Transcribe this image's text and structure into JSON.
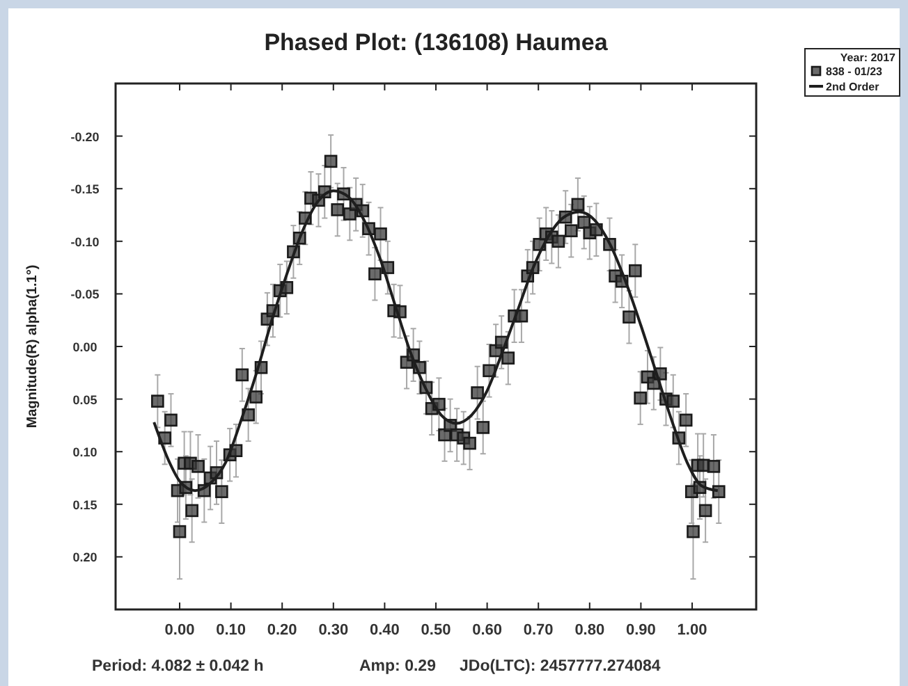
{
  "chart_data": {
    "type": "scatter",
    "title": "Phased Plot: (136108) Haumea",
    "ylabel": "Magnitude(R) alpha(1.1°)",
    "legend_title": "Year: 2017",
    "legend": "top right",
    "grid": false,
    "annotations": [
      "Period: 4.082 ± 0.042 h",
      "Amp: 0.29",
      "JDo(LTC): 2457777.274084"
    ],
    "xlim": [
      -0.125,
      1.125
    ],
    "xticks": [
      {
        "value": 0,
        "label": "0.00"
      },
      {
        "value": 0.1,
        "label": "0.10"
      },
      {
        "value": 0.2,
        "label": "0.20"
      },
      {
        "value": 0.3,
        "label": "0.30"
      },
      {
        "value": 0.4,
        "label": "0.40"
      },
      {
        "value": 0.5,
        "label": "0.50"
      },
      {
        "value": 0.6,
        "label": "0.60"
      },
      {
        "value": 0.7,
        "label": "0.70"
      },
      {
        "value": 0.8,
        "label": "0.80"
      },
      {
        "value": 0.9,
        "label": "0.90"
      },
      {
        "value": 1,
        "label": "1.00"
      }
    ],
    "ylim": [
      0.25,
      -0.25
    ],
    "yticks": [
      {
        "value": -0.2,
        "label": "-0.20"
      },
      {
        "value": -0.15,
        "label": "-0.15"
      },
      {
        "value": -0.1,
        "label": "-0.10"
      },
      {
        "value": -0.05,
        "label": "-0.05"
      },
      {
        "value": 0,
        "label": "0.00"
      },
      {
        "value": 0.05,
        "label": "0.05"
      },
      {
        "value": 0.1,
        "label": "0.10"
      },
      {
        "value": 0.15,
        "label": "0.15"
      },
      {
        "value": 0.2,
        "label": "0.20"
      }
    ],
    "series": [
      {
        "name": "838 - 01/23",
        "marker": "square",
        "color": "#3a3a3a",
        "x": [
          -0.043,
          -0.029,
          -0.017,
          -0.004,
          0,
          0.009,
          0.012,
          0.021,
          0.024,
          0.036,
          0.048,
          0.06,
          0.072,
          0.082,
          0.098,
          0.11,
          0.122,
          0.134,
          0.149,
          0.159,
          0.171,
          0.182,
          0.196,
          0.209,
          0.222,
          0.234,
          0.245,
          0.256,
          0.271,
          0.283,
          0.295,
          0.308,
          0.32,
          0.332,
          0.344,
          0.357,
          0.369,
          0.381,
          0.392,
          0.406,
          0.418,
          0.43,
          0.443,
          0.456,
          0.468,
          0.481,
          0.492,
          0.506,
          0.517,
          0.528,
          0.541,
          0.554,
          0.566,
          0.581,
          0.592,
          0.604,
          0.617,
          0.628,
          0.641,
          0.653,
          0.667,
          0.679,
          0.689,
          0.702,
          0.715,
          0.726,
          0.739,
          0.753,
          0.764,
          0.777,
          0.789,
          0.8,
          0.813,
          0.839,
          0.85,
          0.863,
          0.877,
          0.889,
          0.899,
          0.913,
          0.925,
          0.938,
          0.949,
          0.963,
          0.974,
          0.988,
          0.999,
          1.002,
          1.011,
          1.015,
          1.022,
          1.026,
          1.042,
          1.052
        ],
        "values": [
          0.052,
          0.087,
          0.07,
          0.137,
          0.176,
          0.111,
          0.134,
          0.111,
          0.156,
          0.114,
          0.137,
          0.125,
          0.12,
          0.138,
          0.103,
          0.099,
          0.027,
          0.065,
          0.048,
          0.02,
          -0.026,
          -0.034,
          -0.053,
          -0.056,
          -0.09,
          -0.103,
          -0.122,
          -0.141,
          -0.139,
          -0.147,
          -0.176,
          -0.13,
          -0.145,
          -0.126,
          -0.135,
          -0.129,
          -0.112,
          -0.069,
          -0.107,
          -0.075,
          -0.034,
          -0.033,
          0.015,
          0.008,
          0.02,
          0.039,
          0.059,
          0.055,
          0.084,
          0.075,
          0.084,
          0.087,
          0.092,
          0.044,
          0.077,
          0.023,
          0.004,
          -0.004,
          0.011,
          -0.029,
          -0.029,
          -0.067,
          -0.075,
          -0.097,
          -0.107,
          -0.104,
          -0.1,
          -0.123,
          -0.11,
          -0.135,
          -0.118,
          -0.108,
          -0.111,
          -0.097,
          -0.067,
          -0.062,
          -0.028,
          -0.072,
          0.049,
          0.029,
          0.035,
          0.026,
          0.05,
          0.052,
          0.087,
          0.07,
          0.138,
          0.176,
          0.113,
          0.134,
          0.113,
          0.156,
          0.114,
          0.138
        ],
        "errors": [
          0.025,
          0.025,
          0.025,
          0.03,
          0.045,
          0.03,
          0.03,
          0.03,
          0.03,
          0.03,
          0.03,
          0.03,
          0.03,
          0.03,
          0.025,
          0.025,
          0.025,
          0.025,
          0.025,
          0.025,
          0.025,
          0.025,
          0.025,
          0.025,
          0.025,
          0.025,
          0.025,
          0.025,
          0.025,
          0.025,
          0.025,
          0.025,
          0.025,
          0.025,
          0.025,
          0.025,
          0.025,
          0.025,
          0.025,
          0.025,
          0.025,
          0.025,
          0.025,
          0.025,
          0.025,
          0.025,
          0.025,
          0.025,
          0.025,
          0.025,
          0.025,
          0.025,
          0.025,
          0.025,
          0.025,
          0.025,
          0.025,
          0.025,
          0.025,
          0.025,
          0.025,
          0.025,
          0.025,
          0.025,
          0.025,
          0.025,
          0.025,
          0.025,
          0.025,
          0.025,
          0.025,
          0.025,
          0.025,
          0.025,
          0.025,
          0.025,
          0.025,
          0.025,
          0.025,
          0.025,
          0.025,
          0.025,
          0.025,
          0.025,
          0.025,
          0.025,
          0.03,
          0.045,
          0.03,
          0.03,
          0.03,
          0.03,
          0.03,
          0.03
        ]
      },
      {
        "name": "2nd Order",
        "type": "line",
        "color": "#1e1e1e",
        "line_style": "solid",
        "x": [
          -0.05,
          -0.02,
          0,
          0.03,
          0.06,
          0.09,
          0.12,
          0.15,
          0.18,
          0.21,
          0.24,
          0.27,
          0.3,
          0.33,
          0.36,
          0.39,
          0.42,
          0.45,
          0.48,
          0.51,
          0.54,
          0.57,
          0.6,
          0.63,
          0.66,
          0.69,
          0.72,
          0.75,
          0.78,
          0.81,
          0.84,
          0.87,
          0.9,
          0.93,
          0.96,
          0.99,
          1.02,
          1.05
        ],
        "values": [
          0.072,
          0.11,
          0.128,
          0.137,
          0.13,
          0.11,
          0.07,
          0.025,
          -0.025,
          -0.07,
          -0.11,
          -0.138,
          -0.148,
          -0.142,
          -0.12,
          -0.085,
          -0.04,
          0.005,
          0.04,
          0.065,
          0.073,
          0.065,
          0.042,
          0.005,
          -0.035,
          -0.075,
          -0.105,
          -0.123,
          -0.128,
          -0.12,
          -0.097,
          -0.062,
          -0.02,
          0.025,
          0.07,
          0.11,
          0.133,
          0.137
        ]
      }
    ]
  }
}
